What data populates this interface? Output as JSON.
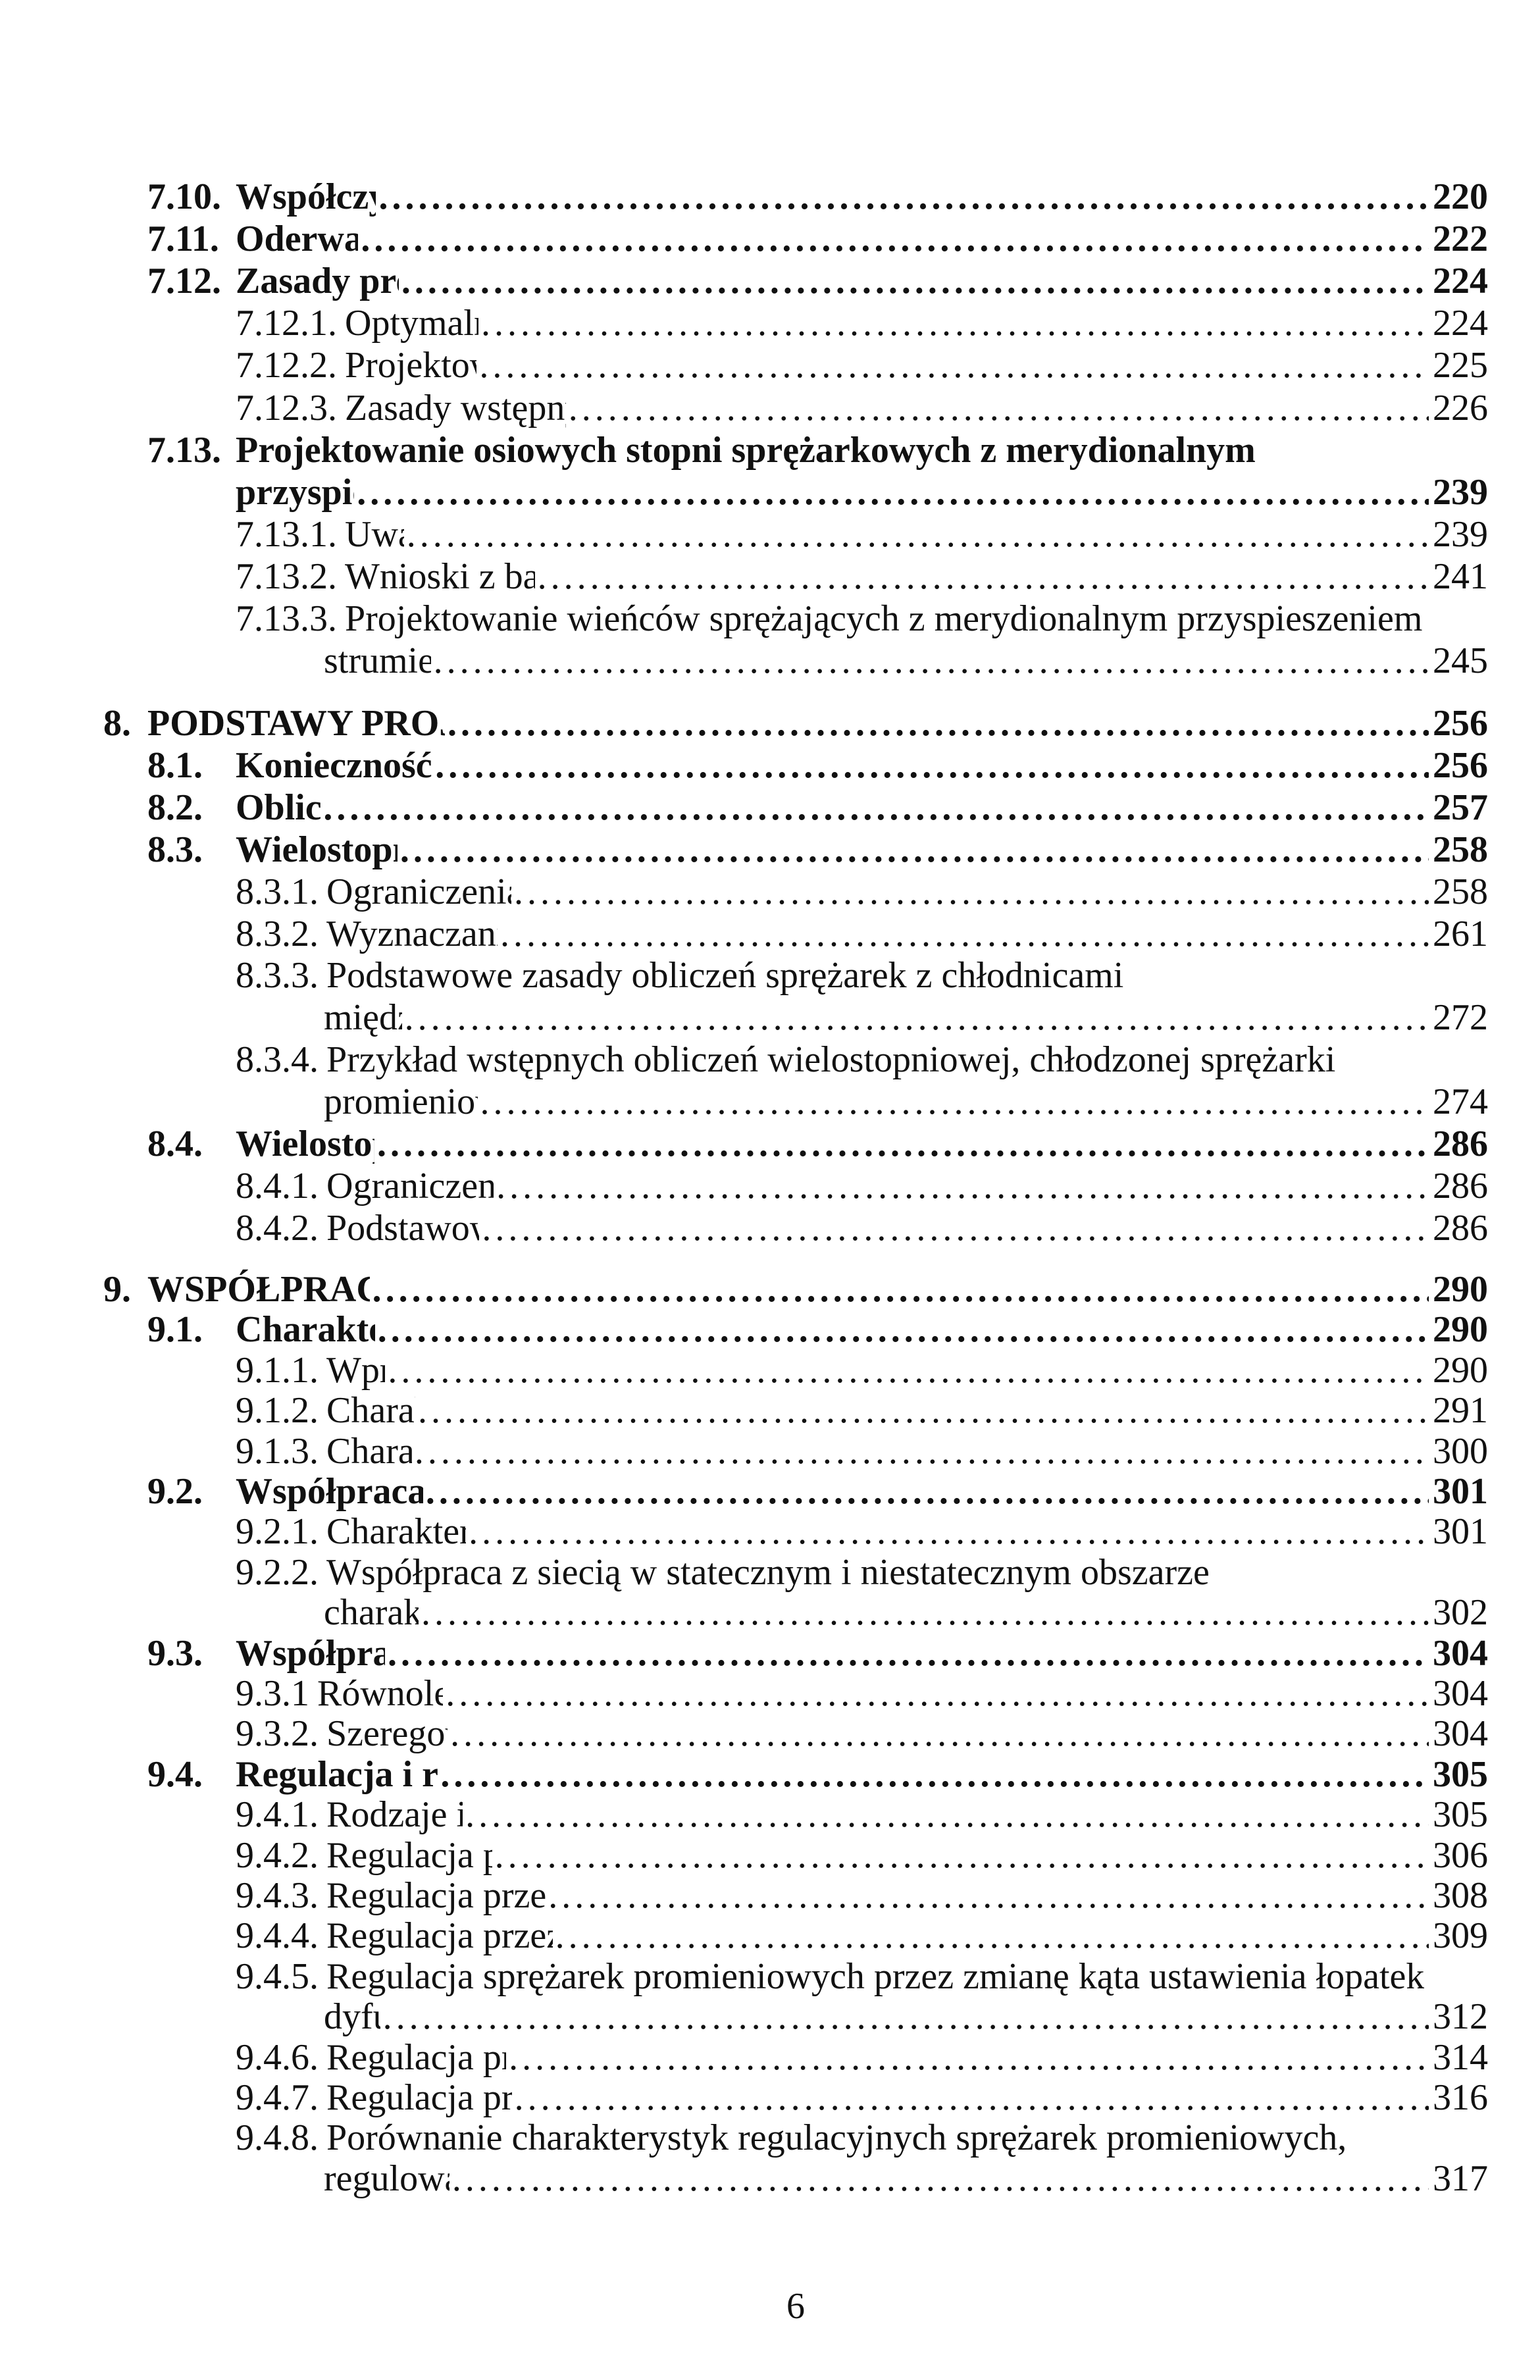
{
  "page_number": "6",
  "groups": [
    {
      "entries": [
        {
          "level": "section",
          "num": "7.10.",
          "lines": [
            "Współczynnik zmniejszenia mocy"
          ],
          "page": "220"
        },
        {
          "level": "section",
          "num": "7.11.",
          "lines": [
            "Oderwanie bezwładnościowe"
          ],
          "page": "222"
        },
        {
          "level": "section",
          "num": "7.12.",
          "lines": [
            "Zasady projektowania stopnia osiowego"
          ],
          "page": "224"
        },
        {
          "level": "subsection",
          "num": "7.12.1.",
          "lines": [
            "Optymalne wskaźniki bezwymiarowe"
          ],
          "page": "224"
        },
        {
          "level": "subsection",
          "num": "7.12.2.",
          "lines": [
            "Projektowanie układów łopatkowych"
          ],
          "page": "225"
        },
        {
          "level": "subsection",
          "num": "7.12.3.",
          "lines": [
            "Zasady wstępnych obliczeń przepływowych wentylatorów osiowych"
          ],
          "page": "226"
        },
        {
          "level": "section",
          "num": "7.13.",
          "lines": [
            "Projektowanie osiowych stopni sprężarkowych z merydionalnym",
            "przyspieszeniem strumienia"
          ],
          "page": "239"
        },
        {
          "level": "subsection",
          "num": "7.13.1.",
          "lines": [
            "Uwagi wstępne"
          ],
          "page": "239"
        },
        {
          "level": "subsection",
          "num": "7.13.2.",
          "lines": [
            "Wnioski z badań modelowych dla potrzeb projektowania"
          ],
          "page": "241"
        },
        {
          "level": "subsection",
          "num": "7.13.3.",
          "lines": [
            "Projektowanie wieńców sprężających z merydionalnym przyspieszeniem",
            "strumienia z piastą stożkową"
          ],
          "page": "245"
        }
      ]
    },
    {
      "entries": [
        {
          "level": "chapter",
          "num": "8.",
          "lines": [
            "PODSTAWY PROJEKTOWANIA SPRĘŻAREK WIELOSTOPNIOWYCH"
          ],
          "page": "256"
        },
        {
          "level": "section",
          "num": "8.1.",
          "lines": [
            "Konieczność budowy sprężarek wielostopniowych"
          ],
          "page": "256"
        },
        {
          "level": "section",
          "num": "8.2.",
          "lines": [
            "Obliczenia wstępne"
          ],
          "page": "257"
        },
        {
          "level": "section",
          "num": "8.3.",
          "lines": [
            "Wielostopniowe sprężarki promieniowe"
          ],
          "page": "258"
        },
        {
          "level": "subsection",
          "num": "8.3.1.",
          "lines": [
            "Ograniczenia w konstrukcji sprężarek promieniowych"
          ],
          "page": "258"
        },
        {
          "level": "subsection",
          "num": "8.3.2.",
          "lines": [
            "Wyznaczanie podstawowych wielkości sprężarek"
          ],
          "page": "261"
        },
        {
          "level": "subsection",
          "num": "8.3.3.",
          "lines": [
            "Podstawowe zasady obliczeń sprężarek z chłodnicami",
            "międzystopniowymi"
          ],
          "page": "272"
        },
        {
          "level": "subsection",
          "num": "8.3.4.",
          "lines": [
            "Przykład wstępnych obliczeń wielostopniowej, chłodzonej sprężarki",
            "promieniowej z chłodnicami zewnętrznymi"
          ],
          "page": "274"
        },
        {
          "level": "section",
          "num": "8.4.",
          "lines": [
            "Wielostopniowe sprężarki osiowe"
          ],
          "page": "286"
        },
        {
          "level": "subsection",
          "num": "8.4.1.",
          "lines": [
            "Ograniczenia w konstrukcji sprężarek osiowych"
          ],
          "page": "286"
        },
        {
          "level": "subsection",
          "num": "8.4.2.",
          "lines": [
            "Podstawowe wielkości sprężarek osiowych"
          ],
          "page": "286"
        }
      ]
    },
    {
      "entries": [
        {
          "level": "chapter",
          "num": "9.",
          "lines": [
            "WSPÓŁPRACA SPRĘŻAREK Z ODBIORNIKIEM"
          ],
          "page": "290"
        },
        {
          "level": "section",
          "num": "9.1.",
          "lines": [
            "Charakterystyki pracy sprężarek"
          ],
          "page": "290"
        },
        {
          "level": "subsection",
          "num": "9.1.1.",
          "lines": [
            "Wprowadzenie"
          ],
          "page": "290"
        },
        {
          "level": "subsection",
          "num": "9.1.2.",
          "lines": [
            "Charakterystyka sprężu"
          ],
          "page": "291"
        },
        {
          "level": "subsection",
          "num": "9.1.3.",
          "lines": [
            "Charakterystyka mocy"
          ],
          "page": "300"
        },
        {
          "level": "section",
          "num": "9.2.",
          "lines": [
            "Współpraca sprężarki z siecią sprężonego gazu"
          ],
          "page": "301"
        },
        {
          "level": "subsection",
          "num": "9.2.1.",
          "lines": [
            "Charakterystyka sieci sprężonego gazu"
          ],
          "page": "301"
        },
        {
          "level": "subsection",
          "num": "9.2.2.",
          "lines": [
            "Współpraca z siecią w statecznym i niestatecznym obszarze",
            "charakterystyki sprężarki"
          ],
          "page": "302"
        },
        {
          "level": "section",
          "num": "9.3.",
          "lines": [
            "Współpraca kilku sprężarek z siecią"
          ],
          "page": "304"
        },
        {
          "level": "subsection",
          "num": "9.3.1",
          "lines": [
            "Równoległa współpraca sprężarek"
          ],
          "page": "304"
        },
        {
          "level": "subsection",
          "num": "9.3.2.",
          "lines": [
            "Szeregowa współpraca sprężarek"
          ],
          "page": "304"
        },
        {
          "level": "section",
          "num": "9.4.",
          "lines": [
            "Regulacja i regulacyjność różnych typów sprężarek"
          ],
          "page": "305"
        },
        {
          "level": "subsection",
          "num": "9.4.1.",
          "lines": [
            "Rodzaje i sposoby regulacji sprężarek"
          ],
          "page": "305"
        },
        {
          "level": "subsection",
          "num": "9.4.2.",
          "lines": [
            "Regulacja poprzez zmianę prędkości obrotowej"
          ],
          "page": "306"
        },
        {
          "level": "subsection",
          "num": "9.4.3.",
          "lines": [
            "Regulacja przez zmianę kąta ustawienia łopatek koła wirnikowego"
          ],
          "page": "308"
        },
        {
          "level": "subsection",
          "num": "9.4.4.",
          "lines": [
            "Regulacja przez zmianę kąta ustawienia łopatek kierownicy wstępnej"
          ],
          "page": "309"
        },
        {
          "level": "subsection",
          "num": "9.4.5.",
          "lines": [
            "Regulacja sprężarek promieniowych przez zmianę kąta ustawienia łopatek",
            "dyfuzorowych"
          ],
          "page": "312"
        },
        {
          "level": "subsection",
          "num": "9.4.6.",
          "lines": [
            "Regulacja przez dławienie gazu w rurociągu ssącym"
          ],
          "page": "314"
        },
        {
          "level": "subsection",
          "num": "9.4.7.",
          "lines": [
            "Regulacja przez dławienie gazu w rurociągu tłocznym"
          ],
          "page": "316"
        },
        {
          "level": "subsection",
          "num": "9.4.8.",
          "lines": [
            "Porównanie charakterystyk regulacyjnych sprężarek promieniowych,",
            "regulowanych różnymi sposobami"
          ],
          "page": "317"
        }
      ]
    }
  ]
}
